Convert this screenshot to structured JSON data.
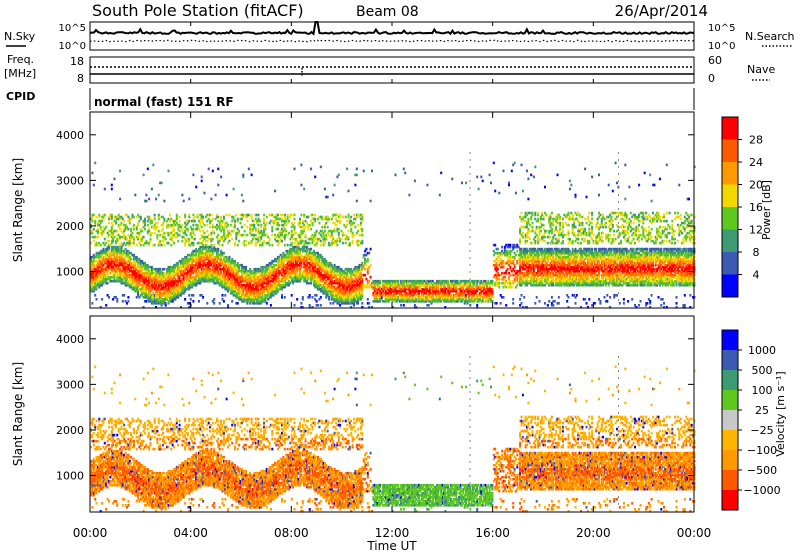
{
  "header": {
    "title": "South Pole Station (fitACF)",
    "beam": "Beam 08",
    "date": "26/Apr/2014"
  },
  "top_panel": {
    "left_label": "N.Sky",
    "right_label": "N.Search",
    "left_ticks": [
      "10^5",
      "10^0"
    ],
    "right_ticks": [
      "10^5",
      "10^0"
    ]
  },
  "freq_panel": {
    "left_label": "Freq.",
    "left_unit": "[MHz]",
    "right_label": "Nave",
    "left_ticks": [
      "18",
      "8"
    ],
    "right_ticks": [
      "60",
      "0"
    ]
  },
  "cpid": {
    "label": "CPID",
    "text": "normal (fast) 151 RF"
  },
  "x_axis": {
    "label": "Time UT",
    "ticks": [
      "00:00",
      "04:00",
      "08:00",
      "12:00",
      "16:00",
      "20:00",
      "00:00"
    ]
  },
  "colors": {
    "power": [
      "#0000ff",
      "#3c5ab4",
      "#3c9b73",
      "#5fc81e",
      "#f0d800",
      "#ff9900",
      "#ff5a00",
      "#ff0000"
    ],
    "velocity": [
      "#ff0000",
      "#ff5a00",
      "#ff9900",
      "#ffb400",
      "#c8c8c8",
      "#5fc81e",
      "#3c9b73",
      "#3c5ab4",
      "#0000ff"
    ]
  },
  "chart_data": [
    {
      "type": "heatmap",
      "title": "",
      "xlabel": "Time UT",
      "ylabel": "Slant Range [km]",
      "xlim": [
        0,
        24
      ],
      "ylim": [
        200,
        4500
      ],
      "yticks": [
        "1000",
        "2000",
        "3000",
        "4000"
      ],
      "colorbar": {
        "label": "Power [dB]",
        "range": [
          0,
          32
        ],
        "ticks": [
          "28",
          "24",
          "20",
          "16",
          "12",
          "8",
          "4"
        ]
      }
    },
    {
      "type": "heatmap",
      "title": "",
      "xlabel": "Time UT",
      "ylabel": "Slant Range [km]",
      "xlim": [
        0,
        24
      ],
      "ylim": [
        200,
        4500
      ],
      "yticks": [
        "1000",
        "2000",
        "3000",
        "4000"
      ],
      "colorbar": {
        "label": "Velocity [m s⁻¹]",
        "ticks": [
          "1000",
          "500",
          "100",
          "25",
          "−25",
          "−100",
          "−500",
          "−1000"
        ]
      }
    }
  ]
}
